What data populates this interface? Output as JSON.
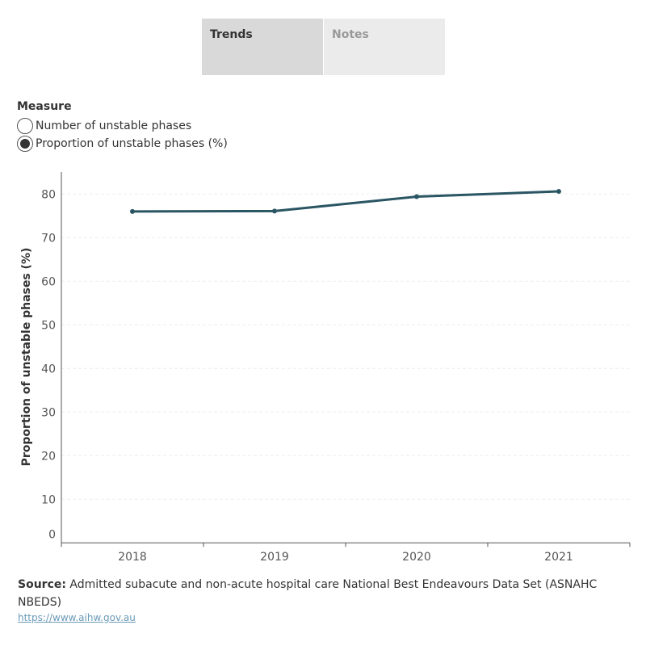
{
  "tabs": [
    {
      "label": "Trends",
      "active": true
    },
    {
      "label": "Notes",
      "active": false
    }
  ],
  "measure": {
    "label": "Measure",
    "options": [
      {
        "label": "Number of unstable phases",
        "selected": false
      },
      {
        "label": "Proportion of unstable phases (%)",
        "selected": true
      }
    ]
  },
  "chart_data": {
    "type": "line",
    "categories": [
      "2018",
      "2019",
      "2020",
      "2021"
    ],
    "series": [
      {
        "values": [
          76.0,
          76.1,
          79.4,
          80.6
        ],
        "color": "#2a5563"
      }
    ],
    "ylabel": "Proportion of unstable phases (%)",
    "xlabel": "",
    "ylim": [
      0,
      85
    ],
    "yticks": [
      0,
      10,
      20,
      30,
      40,
      50,
      60,
      70,
      80
    ],
    "grid": true
  },
  "source": {
    "label": "Source:",
    "text": "Admitted subacute and non-acute hospital care National Best Endeavours Data Set (ASNAHC NBEDS)",
    "link": "https://www.aihw.gov.au"
  }
}
